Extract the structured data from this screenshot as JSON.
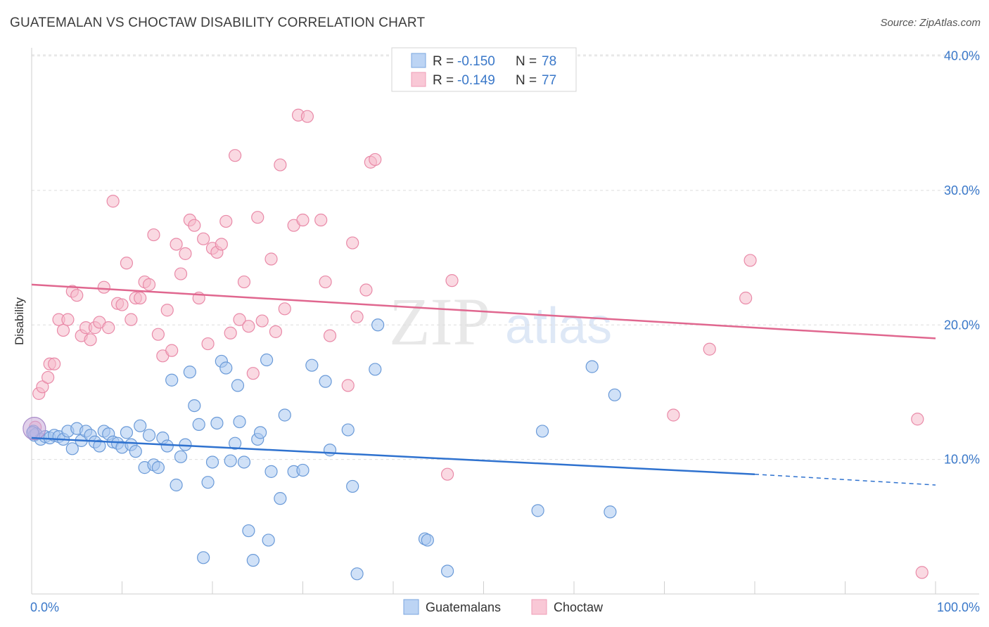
{
  "title": "GUATEMALAN VS CHOCTAW DISABILITY CORRELATION CHART",
  "source": "Source: ZipAtlas.com",
  "watermark": {
    "zip": "ZIP",
    "atlas": "atlas"
  },
  "colors": {
    "blue_fill": "#a9c8f0",
    "blue_stroke": "#6a9ad8",
    "blue_line": "#2f72cf",
    "pink_fill": "#f6b9cb",
    "pink_stroke": "#e98aa8",
    "pink_line": "#e0678f",
    "tick_text": "#3a78c9",
    "grid": "#dddddd"
  },
  "legend": {
    "blue": {
      "r_label": "R =",
      "r_value": "-0.150",
      "n_label": "N =",
      "n_value": "78"
    },
    "pink": {
      "r_label": "R =",
      "r_value": "-0.149",
      "n_label": "N =",
      "n_value": "77"
    }
  },
  "chart_data": {
    "type": "scatter",
    "title": "GUATEMALAN VS CHOCTAW DISABILITY CORRELATION CHART",
    "xlabel": "",
    "ylabel": "Disability",
    "xlim": [
      0,
      100
    ],
    "ylim": [
      0,
      40.5
    ],
    "x_tick_labels": [
      "0.0%",
      "100.0%"
    ],
    "y_ticks": [
      10,
      20,
      30,
      40
    ],
    "y_tick_labels": [
      "10.0%",
      "20.0%",
      "30.0%",
      "40.0%"
    ],
    "legend_position": "bottom-center",
    "series": [
      {
        "name": "Guatemalans",
        "color": "blue",
        "trend": {
          "x0": 0,
          "y0": 11.6,
          "x1": 80,
          "y1": 8.9,
          "dash_x1": 100,
          "dash_y1": 8.1
        },
        "points": [
          [
            0.2,
            12.1
          ],
          [
            0.3,
            11.8
          ],
          [
            0.5,
            11.9
          ],
          [
            1.0,
            11.5
          ],
          [
            1.5,
            11.7
          ],
          [
            2.0,
            11.6
          ],
          [
            2.5,
            11.8
          ],
          [
            3.0,
            11.7
          ],
          [
            3.5,
            11.5
          ],
          [
            4.0,
            12.1
          ],
          [
            4.5,
            10.8
          ],
          [
            5.0,
            12.3
          ],
          [
            5.5,
            11.4
          ],
          [
            6.0,
            12.1
          ],
          [
            6.5,
            11.8
          ],
          [
            7.0,
            11.3
          ],
          [
            7.5,
            11.0
          ],
          [
            8.0,
            12.1
          ],
          [
            8.5,
            11.9
          ],
          [
            9.0,
            11.3
          ],
          [
            9.5,
            11.2
          ],
          [
            10.0,
            10.9
          ],
          [
            10.5,
            12.0
          ],
          [
            11.0,
            11.1
          ],
          [
            11.5,
            10.6
          ],
          [
            12.0,
            12.5
          ],
          [
            12.5,
            9.4
          ],
          [
            13.0,
            11.8
          ],
          [
            13.5,
            9.6
          ],
          [
            14.0,
            9.4
          ],
          [
            14.5,
            11.6
          ],
          [
            15.0,
            11.0
          ],
          [
            15.5,
            15.9
          ],
          [
            16.0,
            8.1
          ],
          [
            16.5,
            10.2
          ],
          [
            17.0,
            11.1
          ],
          [
            17.5,
            16.5
          ],
          [
            18.0,
            14.0
          ],
          [
            18.5,
            12.6
          ],
          [
            19.0,
            2.7
          ],
          [
            19.5,
            8.3
          ],
          [
            20.0,
            9.8
          ],
          [
            20.5,
            12.7
          ],
          [
            21.0,
            17.3
          ],
          [
            21.5,
            16.8
          ],
          [
            22.0,
            9.9
          ],
          [
            22.5,
            11.2
          ],
          [
            22.8,
            15.5
          ],
          [
            23.0,
            12.8
          ],
          [
            23.5,
            9.8
          ],
          [
            24.0,
            4.7
          ],
          [
            24.5,
            2.5
          ],
          [
            25.0,
            11.5
          ],
          [
            25.3,
            12.0
          ],
          [
            26.0,
            17.4
          ],
          [
            26.2,
            4.0
          ],
          [
            26.5,
            9.1
          ],
          [
            27.5,
            7.1
          ],
          [
            28.0,
            13.3
          ],
          [
            29.0,
            9.1
          ],
          [
            30.0,
            9.2
          ],
          [
            31.0,
            17.0
          ],
          [
            32.5,
            15.8
          ],
          [
            33.0,
            10.7
          ],
          [
            35.0,
            12.2
          ],
          [
            35.5,
            8.0
          ],
          [
            36.0,
            1.5
          ],
          [
            38.0,
            16.7
          ],
          [
            38.3,
            20.0
          ],
          [
            43.5,
            4.1
          ],
          [
            43.8,
            4.0
          ],
          [
            46.0,
            1.7
          ],
          [
            56.0,
            6.2
          ],
          [
            56.5,
            12.1
          ],
          [
            62.0,
            16.9
          ],
          [
            64.0,
            6.1
          ],
          [
            64.5,
            14.8
          ],
          [
            0.1,
            12.0
          ]
        ]
      },
      {
        "name": "Choctaw",
        "color": "pink",
        "trend": {
          "x0": 0,
          "y0": 23.0,
          "x1": 100,
          "y1": 19.0
        },
        "points": [
          [
            0.4,
            12.4
          ],
          [
            0.8,
            14.9
          ],
          [
            1.2,
            15.4
          ],
          [
            1.8,
            16.1
          ],
          [
            2.0,
            17.1
          ],
          [
            2.5,
            17.1
          ],
          [
            3.0,
            20.4
          ],
          [
            3.5,
            19.6
          ],
          [
            4.0,
            20.4
          ],
          [
            4.5,
            22.5
          ],
          [
            5.0,
            22.2
          ],
          [
            5.5,
            19.2
          ],
          [
            6.0,
            19.8
          ],
          [
            6.5,
            18.9
          ],
          [
            7.0,
            19.8
          ],
          [
            7.5,
            20.2
          ],
          [
            8.0,
            22.8
          ],
          [
            8.5,
            19.8
          ],
          [
            9.0,
            29.2
          ],
          [
            9.5,
            21.6
          ],
          [
            10.0,
            21.5
          ],
          [
            10.5,
            24.6
          ],
          [
            11.0,
            20.4
          ],
          [
            11.5,
            22.0
          ],
          [
            12.0,
            22.0
          ],
          [
            12.5,
            23.2
          ],
          [
            13.0,
            23.0
          ],
          [
            13.5,
            26.7
          ],
          [
            14.0,
            19.3
          ],
          [
            14.5,
            17.7
          ],
          [
            15.0,
            21.1
          ],
          [
            15.5,
            18.1
          ],
          [
            16.0,
            26.0
          ],
          [
            16.5,
            23.8
          ],
          [
            17.0,
            25.3
          ],
          [
            17.5,
            27.8
          ],
          [
            18.0,
            27.4
          ],
          [
            18.5,
            22.0
          ],
          [
            19.0,
            26.4
          ],
          [
            19.5,
            18.6
          ],
          [
            20.0,
            25.7
          ],
          [
            20.5,
            25.4
          ],
          [
            21.0,
            26.0
          ],
          [
            21.5,
            27.7
          ],
          [
            22.0,
            19.4
          ],
          [
            22.5,
            32.6
          ],
          [
            23.0,
            20.4
          ],
          [
            23.5,
            23.2
          ],
          [
            24.0,
            19.9
          ],
          [
            24.5,
            16.4
          ],
          [
            25.0,
            28.0
          ],
          [
            25.5,
            20.3
          ],
          [
            26.5,
            24.9
          ],
          [
            27.0,
            19.5
          ],
          [
            27.5,
            31.9
          ],
          [
            28.0,
            21.2
          ],
          [
            29.0,
            27.4
          ],
          [
            29.5,
            35.6
          ],
          [
            30.0,
            27.8
          ],
          [
            30.5,
            35.5
          ],
          [
            32.0,
            27.8
          ],
          [
            32.5,
            23.2
          ],
          [
            33.0,
            19.2
          ],
          [
            35.0,
            15.5
          ],
          [
            35.5,
            26.1
          ],
          [
            36.0,
            20.6
          ],
          [
            37.0,
            22.6
          ],
          [
            37.5,
            32.1
          ],
          [
            38.0,
            32.3
          ],
          [
            46.0,
            8.9
          ],
          [
            46.5,
            23.3
          ],
          [
            71.0,
            13.3
          ],
          [
            75.0,
            18.2
          ],
          [
            79.0,
            22.0
          ],
          [
            79.5,
            24.8
          ],
          [
            98.0,
            13.0
          ],
          [
            98.5,
            1.6
          ]
        ]
      }
    ]
  },
  "bottom_legend": {
    "items": [
      {
        "label": "Guatemalans",
        "color": "blue"
      },
      {
        "label": "Choctaw",
        "color": "pink"
      }
    ]
  }
}
